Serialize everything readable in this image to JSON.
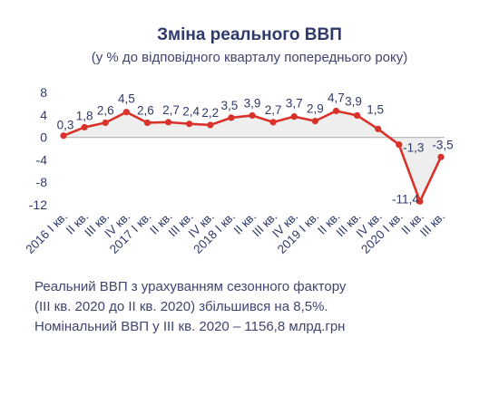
{
  "title": "Зміна реального ВВП",
  "subtitle": "(у % до відповідного кварталу попереднього року)",
  "notes": [
    "Реальний ВВП з урахуванням сезонного фактору",
    "(ІІІ кв. 2020 до ІІ кв. 2020) збільшився на 8,5%.",
    "Номінальний ВВП у ІІІ кв. 2020 – 1156,8 млрд.грн"
  ],
  "colors": {
    "line": "#d9322b",
    "area": "#eeeeee",
    "zero_line": "#b8b8b8",
    "axis_text": "#2f3a6b"
  },
  "chart_data": {
    "type": "area",
    "title": "Зміна реального ВВП",
    "subtitle": "(у % до відповідного кварталу попереднього року)",
    "xlabel": "",
    "ylabel": "",
    "ylim": [
      -12,
      8
    ],
    "yticks": [
      8,
      4,
      0,
      -4,
      -8,
      -12
    ],
    "ytick_labels": [
      "8",
      "4",
      "0",
      "-4",
      "-8",
      "-12"
    ],
    "grid": false,
    "categories": [
      "2016 І кв.",
      "ІІ кв.",
      "ІІІ кв.",
      "IV кв.",
      "2017 І кв.",
      "ІІ кв.",
      "ІІІ кв.",
      "IV кв.",
      "2018 І кв.",
      "ІІ кв.",
      "ІІІ кв.",
      "IV кв.",
      "2019 І кв.",
      "ІІ кв.",
      "ІІІ кв.",
      "IV кв.",
      "2020 І кв.",
      "ІІ кв.",
      "ІІІ кв."
    ],
    "series": [
      {
        "values": [
          0.3,
          1.8,
          2.6,
          4.5,
          2.6,
          2.7,
          2.4,
          2.2,
          3.5,
          3.9,
          2.7,
          3.7,
          2.9,
          4.7,
          3.9,
          1.5,
          -1.3,
          -11.4,
          -3.5
        ],
        "labels": [
          "0,3",
          "1,8",
          "2,6",
          "4,5",
          "2,6",
          "2,7",
          "2,4",
          "2,2",
          "3,5",
          "3,9",
          "2,7",
          "3,7",
          "2,9",
          "4,7",
          "3,9",
          "1,5",
          "-1,3",
          "-11,4",
          "-3,5"
        ]
      }
    ]
  }
}
